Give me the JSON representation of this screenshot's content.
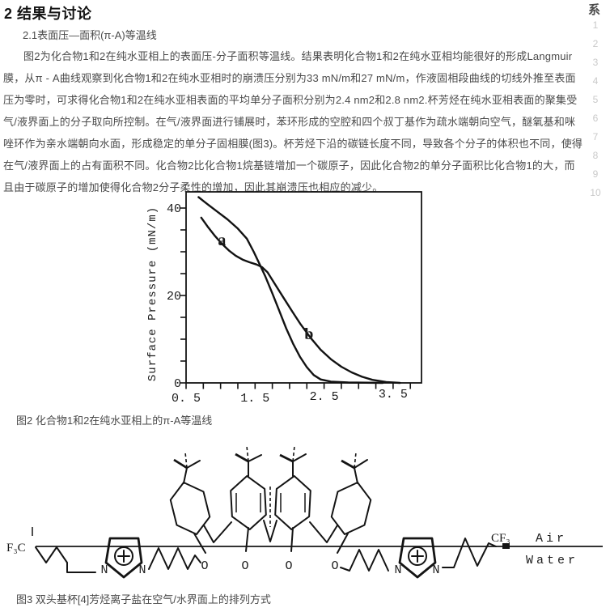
{
  "page": {
    "heading": "2 结果与讨论",
    "subheading": "2.1表面压—面积(π-A)等温线",
    "paragraph_lines": [
      "图2为化合物1和2在纯水亚相上的表面压-分子面积等温线。结果表明化合物1和2在纯水亚相均能很好的形成Langmuir",
      "膜，从π - A曲线观察到化合物1和2在纯水亚相时的崩溃压分别为33 mN/m和27 mN/m，作液固相段曲线的切线外推至表面",
      "压为零时，可求得化合物1和2在纯水亚相表面的平均单分子面积分别为2.4 nm2和2.8 nm2.杯芳烃在纯水亚相表面的聚集受",
      "气/液界面上的分子取向所控制。在气/液界面进行铺展时，苯环形成的空腔和四个叔丁基作为疏水端朝向空气，醚氧基和咪",
      "唑环作为亲水端朝向水面，形成稳定的单分子固相膜(图3)。杯芳烃下沿的碳链长度不同，导致各个分子的体积也不同，使得",
      "在气/液界面上的占有面积不同。化合物2比化合物1烷基链增加一个碳原子，因此化合物2的单分子面积比化合物1的大，而",
      "且由于碳原子的增加使得化合物2分子柔性的增加，因此其崩溃压也相应的减少。"
    ],
    "figure2_caption": "图2 化合物1和2在纯水亚相上的π-A等温线",
    "figure3_caption": "图3 双头基杯[4]芳烃离子盐在空气/水界面上的排列方式"
  },
  "sidebar": {
    "partial_char": "系",
    "page_numbers": [
      "1",
      "2",
      "3",
      "4",
      "5",
      "6",
      "7",
      "8",
      "9",
      "10"
    ]
  },
  "chart_data": {
    "type": "line",
    "title": "",
    "xlabel": "",
    "ylabel": "Surface Pressure (mN/m)",
    "xlim": [
      0.5,
      3.9
    ],
    "ylim": [
      0,
      43.5
    ],
    "grid": false,
    "x_ticks": [
      0.5,
      1.5,
      2.5,
      3.5
    ],
    "x_tick_labels": [
      "0. 5",
      "1. 5",
      "2. 5",
      "3. 5"
    ],
    "y_ticks": [
      0,
      20,
      40
    ],
    "y_tick_labels": [
      "0",
      "20",
      "40"
    ],
    "x_minor_step": 0.25,
    "y_minor_step": 5,
    "series": [
      {
        "name": "a",
        "x": [
          0.68,
          0.8,
          0.95,
          1.1,
          1.25,
          1.38,
          1.48,
          1.57,
          1.65,
          1.75,
          1.85,
          1.95,
          2.05,
          2.15,
          2.25,
          2.35,
          2.45,
          2.6,
          2.85,
          3.35
        ],
        "y": [
          42.5,
          41.0,
          39.2,
          37.4,
          35.3,
          33.0,
          30.0,
          27.0,
          24.3,
          20.5,
          16.5,
          12.5,
          9.0,
          6.0,
          3.6,
          1.8,
          0.8,
          0.3,
          0.1,
          0.0
        ]
      },
      {
        "name": "b",
        "x": [
          0.72,
          0.82,
          0.92,
          1.02,
          1.12,
          1.22,
          1.32,
          1.42,
          1.52,
          1.6,
          1.68,
          1.8,
          1.92,
          2.04,
          2.16,
          2.3,
          2.45,
          2.6,
          2.75,
          2.9,
          3.05,
          3.2,
          3.4,
          3.6
        ],
        "y": [
          37.8,
          35.6,
          33.6,
          31.8,
          30.3,
          29.1,
          28.2,
          27.6,
          27.1,
          26.5,
          25.3,
          22.3,
          19.3,
          16.3,
          13.4,
          10.4,
          7.6,
          5.4,
          3.7,
          2.4,
          1.4,
          0.7,
          0.2,
          0.0
        ]
      }
    ],
    "annotations": [
      {
        "label": "a",
        "x": 1.02,
        "y": 31.5
      },
      {
        "label": "b",
        "x": 2.28,
        "y": 10.0
      }
    ]
  },
  "structure3": {
    "f3c": "F₃C",
    "cf3": "CF₃",
    "air": "Air",
    "water": "Water",
    "o": "O",
    "n": "N",
    "plus": "+"
  }
}
